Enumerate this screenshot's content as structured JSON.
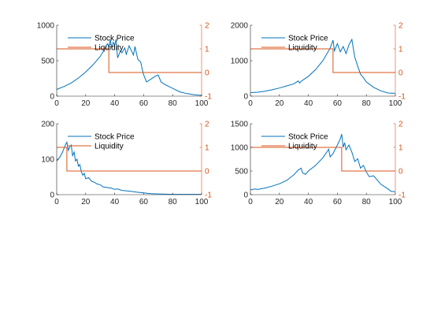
{
  "colors": {
    "price": "#0072BD",
    "liquidity": "#D95319",
    "axis": "#262626"
  },
  "chart_data": [
    {
      "type": "line",
      "legend": [
        "Stock Price",
        "Liquidity"
      ],
      "legend_position": "top-left",
      "grid": false,
      "xlim": [
        0,
        100
      ],
      "xticks": [
        "0",
        "20",
        "40",
        "60",
        "80",
        "100"
      ],
      "ylim_left": [
        0,
        1000
      ],
      "yticks_left": [
        "0",
        "500",
        "1000"
      ],
      "ylim_right": [
        -1,
        2
      ],
      "yticks_right": [
        "-1",
        "0",
        "1",
        "2"
      ],
      "series": [
        {
          "role": "price",
          "x": [
            0,
            5,
            10,
            15,
            20,
            25,
            30,
            33,
            35,
            36,
            37,
            38,
            39,
            40,
            41,
            42,
            44,
            45,
            47,
            48,
            50,
            52,
            53,
            54,
            56,
            58,
            59,
            60,
            62,
            65,
            68,
            70,
            72,
            75,
            80,
            85,
            90,
            95,
            100
          ],
          "y": [
            95,
            135,
            185,
            255,
            340,
            440,
            560,
            660,
            740,
            700,
            790,
            680,
            760,
            720,
            800,
            540,
            640,
            610,
            680,
            590,
            710,
            620,
            580,
            700,
            520,
            480,
            380,
            300,
            200,
            240,
            280,
            300,
            200,
            160,
            110,
            60,
            35,
            20,
            10
          ]
        },
        {
          "role": "liquidity",
          "x": [
            0,
            36,
            36,
            100
          ],
          "y": [
            1,
            1,
            0,
            0
          ]
        }
      ]
    },
    {
      "type": "line",
      "legend": [
        "Stock Price",
        "Liquidity"
      ],
      "legend_position": "top-left",
      "grid": false,
      "xlim": [
        0,
        100
      ],
      "xticks": [
        "0",
        "20",
        "40",
        "60",
        "80",
        "100"
      ],
      "ylim_left": [
        0,
        2000
      ],
      "yticks_left": [
        "0",
        "1000",
        "2000"
      ],
      "ylim_right": [
        -1,
        2
      ],
      "yticks_right": [
        "-1",
        "0",
        "1",
        "2"
      ],
      "series": [
        {
          "role": "price",
          "x": [
            0,
            5,
            10,
            15,
            20,
            25,
            30,
            33,
            34,
            35,
            40,
            45,
            50,
            55,
            57,
            58,
            60,
            62,
            64,
            66,
            68,
            70,
            72,
            74,
            76,
            78,
            80,
            85,
            90,
            95,
            100
          ],
          "y": [
            100,
            110,
            140,
            180,
            230,
            290,
            350,
            430,
            370,
            420,
            560,
            750,
            1000,
            1350,
            1580,
            1280,
            1480,
            1250,
            1400,
            1200,
            1450,
            1600,
            1100,
            850,
            620,
            520,
            400,
            250,
            150,
            90,
            80
          ]
        },
        {
          "role": "liquidity",
          "x": [
            0,
            57,
            57,
            100
          ],
          "y": [
            1,
            1,
            0,
            0
          ]
        }
      ]
    },
    {
      "type": "line",
      "legend": [
        "Stock Price",
        "Liquidity"
      ],
      "legend_position": "top-left",
      "grid": false,
      "xlim": [
        0,
        100
      ],
      "xticks": [
        "0",
        "20",
        "40",
        "60",
        "80",
        "100"
      ],
      "ylim_left": [
        0,
        200
      ],
      "yticks_left": [
        "0",
        "100",
        "200"
      ],
      "ylim_right": [
        -1,
        2
      ],
      "yticks_right": [
        "-1",
        "0",
        "1",
        "2"
      ],
      "series": [
        {
          "role": "price",
          "x": [
            0,
            2,
            4,
            6,
            7,
            8,
            9,
            10,
            11,
            12,
            13,
            14,
            15,
            16,
            17,
            18,
            19,
            20,
            22,
            24,
            26,
            28,
            30,
            32,
            35,
            38,
            40,
            42,
            45,
            50,
            55,
            60,
            65,
            70,
            80,
            90,
            100
          ],
          "y": [
            95,
            105,
            120,
            140,
            148,
            125,
            135,
            140,
            110,
            120,
            95,
            100,
            80,
            85,
            65,
            55,
            60,
            45,
            48,
            38,
            35,
            30,
            28,
            22,
            20,
            18,
            15,
            16,
            12,
            10,
            7,
            5,
            3,
            2,
            1,
            1,
            1
          ]
        },
        {
          "role": "liquidity",
          "x": [
            0,
            7,
            7,
            100
          ],
          "y": [
            1,
            1,
            0,
            0
          ]
        }
      ]
    },
    {
      "type": "line",
      "legend": [
        "Stock Price",
        "Liquidity"
      ],
      "legend_position": "top-left",
      "grid": false,
      "xlim": [
        0,
        100
      ],
      "xticks": [
        "0",
        "20",
        "40",
        "60",
        "80",
        "100"
      ],
      "ylim_left": [
        0,
        1500
      ],
      "yticks_left": [
        "0",
        "500",
        "1000",
        "1500"
      ],
      "ylim_right": [
        -1,
        2
      ],
      "yticks_right": [
        "-1",
        "0",
        "1",
        "2"
      ],
      "series": [
        {
          "role": "price",
          "x": [
            0,
            3,
            5,
            10,
            15,
            20,
            25,
            30,
            33,
            35,
            36,
            38,
            40,
            45,
            50,
            54,
            55,
            57,
            60,
            62,
            63,
            64,
            65,
            66,
            68,
            70,
            72,
            74,
            76,
            78,
            80,
            82,
            85,
            90,
            95,
            97,
            100
          ],
          "y": [
            100,
            120,
            110,
            140,
            180,
            230,
            300,
            420,
            520,
            560,
            460,
            430,
            500,
            620,
            780,
            960,
            800,
            870,
            1050,
            1180,
            1280,
            1000,
            1100,
            950,
            1050,
            900,
            700,
            760,
            560,
            620,
            480,
            380,
            400,
            220,
            120,
            70,
            60
          ]
        },
        {
          "role": "liquidity",
          "x": [
            0,
            63,
            63,
            100
          ],
          "y": [
            1,
            1,
            0,
            0
          ]
        }
      ]
    }
  ]
}
